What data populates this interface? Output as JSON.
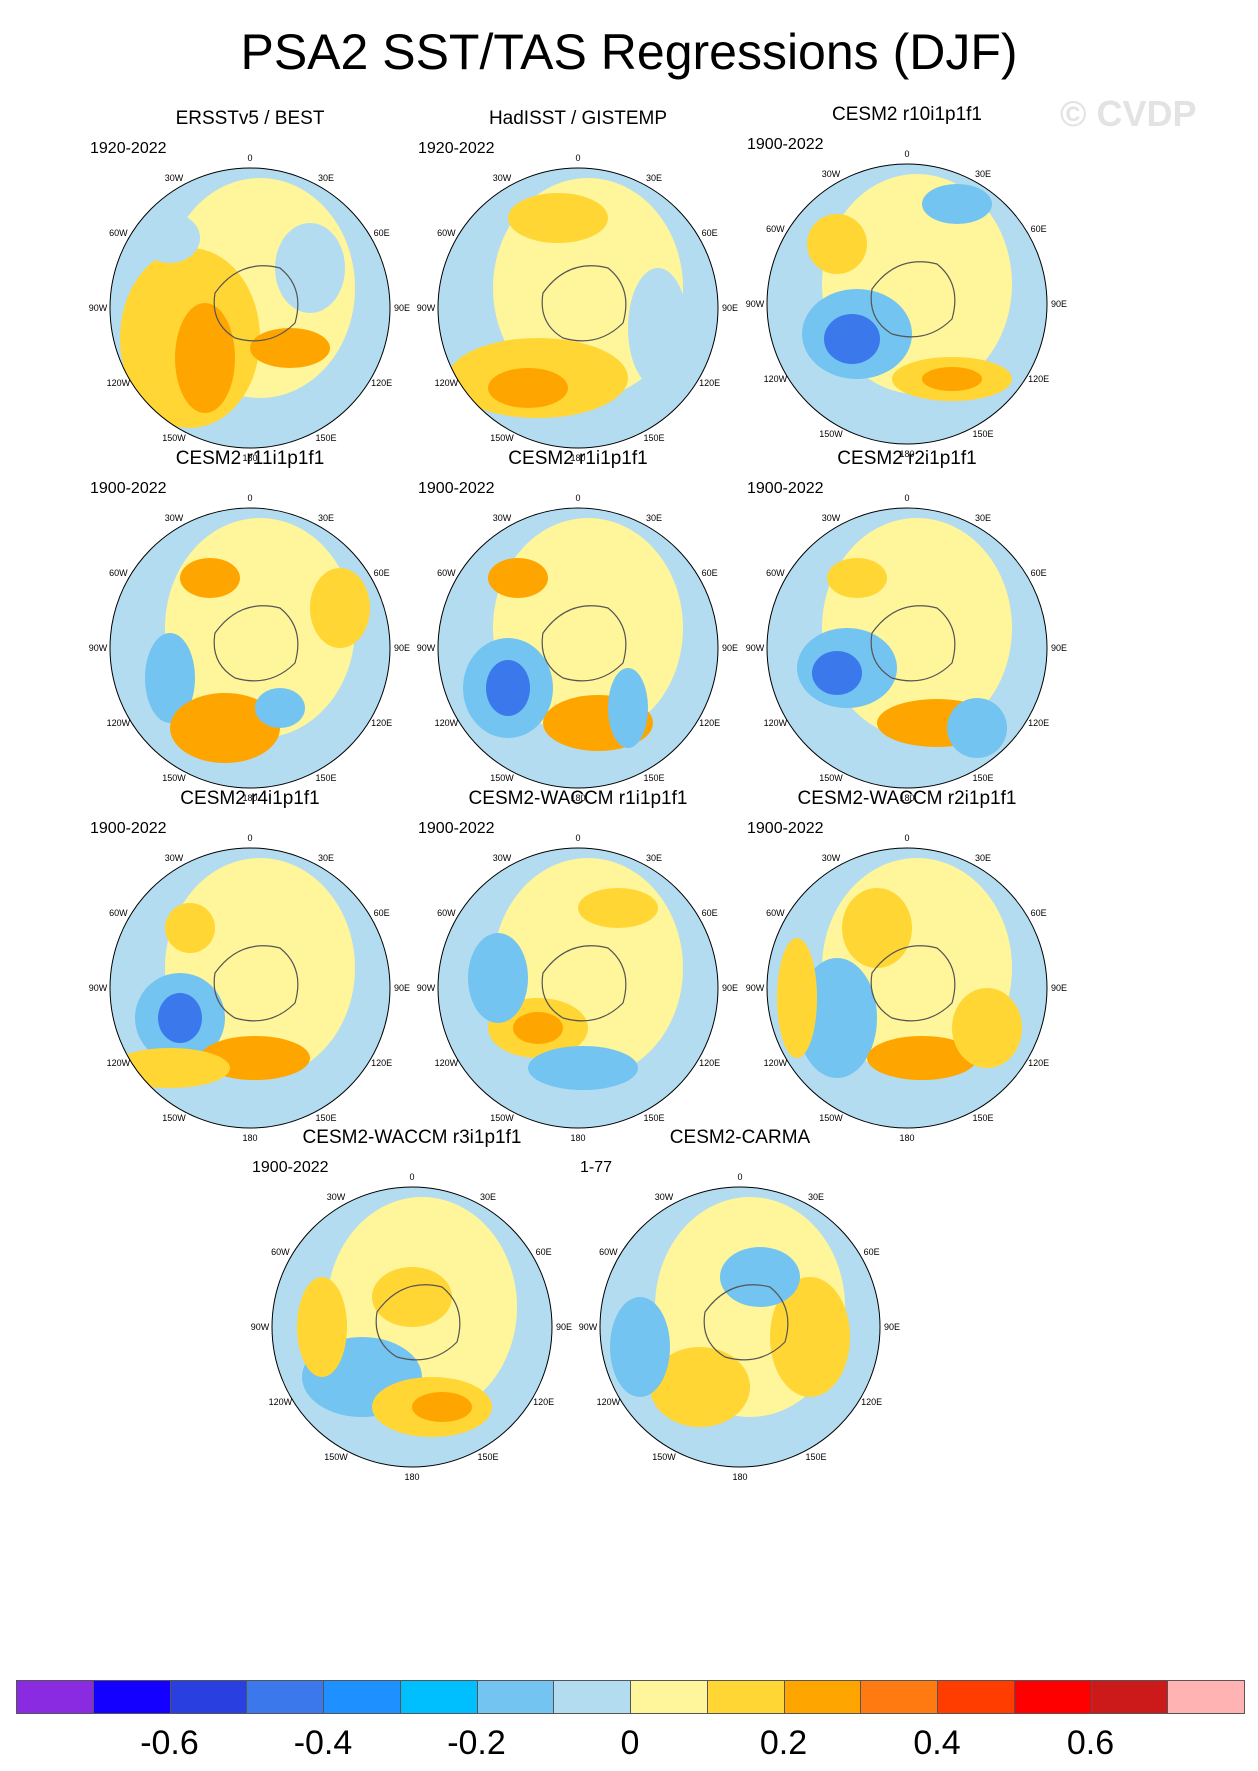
{
  "title": "PSA2 SST/TAS Regressions (DJF)",
  "watermark": "© CVDP",
  "longitude_labels": [
    "0",
    "30E",
    "60E",
    "90E",
    "120E",
    "150E",
    "180",
    "150W",
    "120W",
    "90W",
    "60W",
    "30W"
  ],
  "panels": [
    {
      "title": "ERSSTv5 / BEST",
      "period": "1920-2022"
    },
    {
      "title": "HadISST / GISTEMP",
      "period": "1920-2022"
    },
    {
      "title": "CESM2 r10i1p1f1",
      "period": "1900-2022"
    },
    {
      "title": "CESM2 r11i1p1f1",
      "period": "1900-2022"
    },
    {
      "title": "CESM2 r1i1p1f1",
      "period": "1900-2022"
    },
    {
      "title": "CESM2 r2i1p1f1",
      "period": "1900-2022"
    },
    {
      "title": "CESM2 r4i1p1f1",
      "period": "1900-2022"
    },
    {
      "title": "CESM2-WACCM r1i1p1f1",
      "period": "1900-2022"
    },
    {
      "title": "CESM2-WACCM r2i1p1f1",
      "period": "1900-2022"
    },
    {
      "title": "CESM2-WACCM r3i1p1f1",
      "period": "1900-2022"
    },
    {
      "title": "CESM2-CARMA",
      "period": "1-77"
    }
  ],
  "colorbar": {
    "colors": [
      "#8a2be2",
      "#1400ff",
      "#2a3fe0",
      "#3a78ec",
      "#1e90ff",
      "#00bfff",
      "#73c4f0",
      "#b3dcf0",
      "#fff59a",
      "#ffd633",
      "#ffa500",
      "#ff7a10",
      "#ff3d00",
      "#ff0000",
      "#cc1a1a",
      "#ffb3b3"
    ],
    "labels": [
      "-0.6",
      "-0.4",
      "-0.2",
      "0",
      "0.2",
      "0.4",
      "0.6"
    ]
  },
  "palette": {
    "light_blue": "#b3dcf0",
    "mid_blue": "#73c4f0",
    "blue": "#3a78ec",
    "pale_yellow": "#fff59a",
    "yellow": "#ffd633",
    "orange": "#ffa500",
    "red": "#ff3d00"
  }
}
